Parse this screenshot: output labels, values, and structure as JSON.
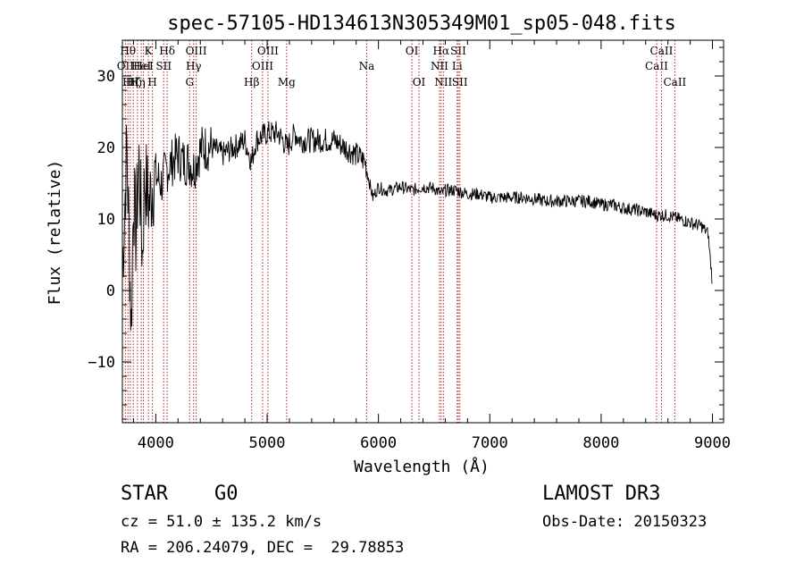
{
  "chart_data": {
    "type": "line",
    "title": "spec-57105-HD134613N305349M01_sp05-048.fits",
    "xlabel": "Wavelength (Å)",
    "ylabel": "Flux (relative)",
    "xlim": [
      3700,
      9100
    ],
    "ylim": [
      -18.5,
      35
    ],
    "xticks": [
      {
        "value": 4000,
        "label": "4000"
      },
      {
        "value": 5000,
        "label": "5000"
      },
      {
        "value": 6000,
        "label": "6000"
      },
      {
        "value": 7000,
        "label": "7000"
      },
      {
        "value": 8000,
        "label": "8000"
      },
      {
        "value": 9000,
        "label": "9000"
      }
    ],
    "yticks": [
      {
        "value": -10,
        "label": "−10"
      },
      {
        "value": 0,
        "label": "0"
      },
      {
        "value": 10,
        "label": "10"
      },
      {
        "value": 20,
        "label": "20"
      },
      {
        "value": 30,
        "label": "30"
      }
    ],
    "series": [
      {
        "name": "flux",
        "x": [
          3700,
          3740,
          3780,
          3800,
          3820,
          3850,
          3880,
          3900,
          3940,
          3970,
          4000,
          4050,
          4100,
          4150,
          4200,
          4250,
          4300,
          4340,
          4380,
          4420,
          4500,
          4600,
          4700,
          4800,
          4860,
          4900,
          5000,
          5100,
          5180,
          5250,
          5300,
          5400,
          5500,
          5600,
          5700,
          5800,
          5880,
          5920,
          5950,
          6000,
          6050,
          6100,
          6200,
          6300,
          6400,
          6500,
          6563,
          6600,
          6700,
          6800,
          6900,
          7000,
          7100,
          7200,
          7300,
          7400,
          7500,
          7600,
          7700,
          7800,
          7900,
          8000,
          8100,
          8200,
          8300,
          8400,
          8500,
          8600,
          8700,
          8800,
          8900,
          8960,
          9000
        ],
        "y": [
          3,
          20,
          -5,
          14,
          8,
          18,
          5,
          16,
          12,
          15,
          16,
          15,
          17,
          18,
          19,
          18,
          18,
          17,
          19,
          20,
          20,
          19,
          20,
          21,
          18,
          21,
          22,
          22,
          20,
          22,
          21,
          21,
          21,
          21,
          20,
          19,
          18,
          15,
          13,
          14.5,
          14,
          14,
          14.5,
          14,
          14.5,
          14.3,
          13.5,
          14,
          14,
          13.5,
          13.5,
          13,
          13,
          13,
          13,
          12.8,
          12.5,
          12.5,
          12.5,
          12.5,
          12.5,
          12,
          12,
          11.5,
          11.3,
          11,
          10.5,
          10.5,
          10,
          9.5,
          9,
          8,
          1
        ]
      }
    ],
    "line_colors": {
      "spectrum": "#000000",
      "marker": "#b22222",
      "axes": "#000000"
    },
    "line_markers": [
      {
        "x": 3727,
        "label": "OII",
        "row": 2
      },
      {
        "x": 3750,
        "label": "Hθ",
        "row": 1
      },
      {
        "x": 3771,
        "label": "Hη",
        "row": 3
      },
      {
        "x": 3798,
        "label": "Hζ",
        "row": 3
      },
      {
        "x": 3835,
        "label": "Hη",
        "row": 3
      },
      {
        "x": 3869,
        "label": "HeI",
        "row": 2
      },
      {
        "x": 3889,
        "label": "HeI",
        "row": 2
      },
      {
        "x": 3934,
        "label": "K",
        "row": 1
      },
      {
        "x": 3970,
        "label": "H",
        "row": 3
      },
      {
        "x": 4071,
        "label": "SII",
        "row": 2
      },
      {
        "x": 4102,
        "label": "Hδ",
        "row": 1
      },
      {
        "x": 4304,
        "label": "G",
        "row": 3
      },
      {
        "x": 4340,
        "label": "Hγ",
        "row": 2
      },
      {
        "x": 4363,
        "label": "OIII",
        "row": 1
      },
      {
        "x": 4861,
        "label": "Hβ",
        "row": 3
      },
      {
        "x": 4959,
        "label": "OIII",
        "row": 2
      },
      {
        "x": 5007,
        "label": "OIII",
        "row": 1
      },
      {
        "x": 5175,
        "label": "Mg",
        "row": 3
      },
      {
        "x": 5894,
        "label": "Na",
        "row": 2
      },
      {
        "x": 6300,
        "label": "OI",
        "row": 1
      },
      {
        "x": 6364,
        "label": "OI",
        "row": 3
      },
      {
        "x": 6548,
        "label": "NII",
        "row": 2
      },
      {
        "x": 6563,
        "label": "Hα",
        "row": 1
      },
      {
        "x": 6583,
        "label": "NII",
        "row": 3
      },
      {
        "x": 6707,
        "label": "Li",
        "row": 2
      },
      {
        "x": 6717,
        "label": "SII",
        "row": 1
      },
      {
        "x": 6731,
        "label": "SII",
        "row": 3
      },
      {
        "x": 8498,
        "label": "CaII",
        "row": 2
      },
      {
        "x": 8542,
        "label": "CaII",
        "row": 1
      },
      {
        "x": 8662,
        "label": "CaII",
        "row": 3
      }
    ]
  },
  "info": {
    "class_label": "STAR",
    "subclass": "G0",
    "survey": "LAMOST DR3",
    "redshift": "cz = 51.0 ± 135.2 km/s",
    "obs_date": "Obs-Date: 20150323",
    "coords": "RA = 206.24079, DEC =  29.78853"
  }
}
